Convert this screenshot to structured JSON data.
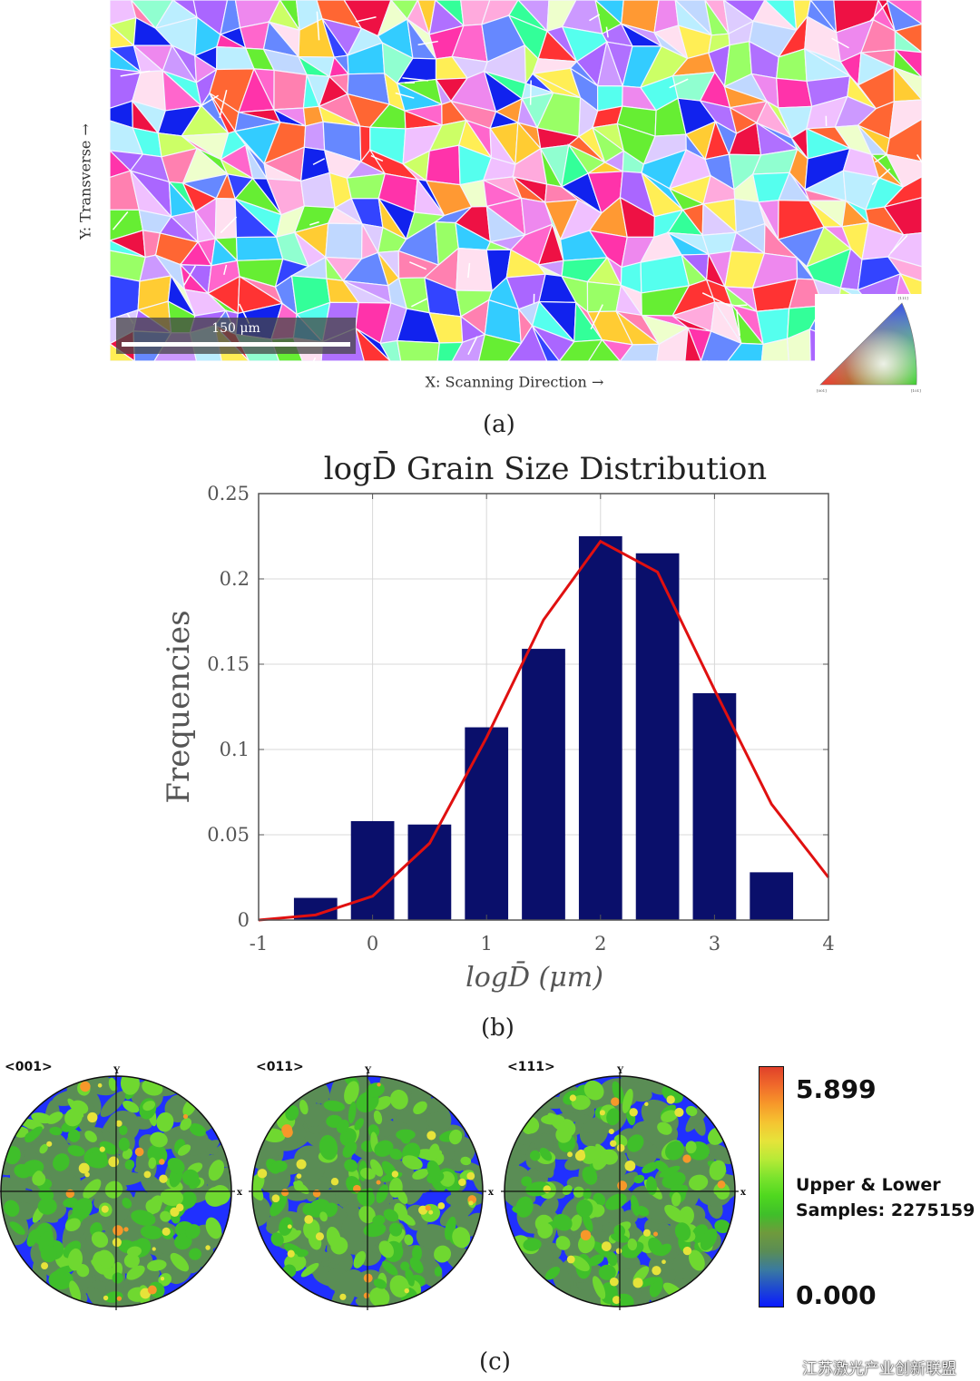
{
  "panel_a": {
    "y_axis_label": "Y: Transverse →",
    "x_axis_label": "X: Scanning Direction →",
    "scale_bar_label": "150 μm",
    "ipf_corner_labels": [
      "001",
      "101",
      "111"
    ],
    "caption": "(a)"
  },
  "panel_b": {
    "caption": "(b)"
  },
  "chart_data": {
    "type": "bar",
    "title": "logD̄ Grain Size Distribution",
    "xlabel": "logD̄ (μm)",
    "ylabel": "Frequencies",
    "xlim": [
      -1,
      4
    ],
    "ylim": [
      0,
      0.25
    ],
    "x_ticks": [
      "-1",
      "0",
      "1",
      "2",
      "3",
      "4"
    ],
    "y_ticks": [
      "0",
      "0.05",
      "0.1",
      "0.15",
      "0.2",
      "0.25"
    ],
    "grid": true,
    "bar_color": "#0a0f6b",
    "fit_color": "#e01010",
    "bar_centers": [
      -0.5,
      0,
      0.5,
      1,
      1.5,
      2,
      2.5,
      3,
      3.5
    ],
    "bar_values": [
      0.013,
      0.058,
      0.056,
      0.113,
      0.159,
      0.225,
      0.215,
      0.133,
      0.028
    ],
    "fit_curve": {
      "x": [
        -1,
        -0.5,
        0,
        0.5,
        1,
        1.5,
        2,
        2.5,
        3,
        3.5,
        4
      ],
      "y": [
        0.0,
        0.003,
        0.014,
        0.045,
        0.107,
        0.176,
        0.222,
        0.204,
        0.135,
        0.068,
        0.025
      ]
    }
  },
  "panel_c": {
    "pole_figures": [
      {
        "label": "<001>",
        "x_axis": "x",
        "y_axis": "Y"
      },
      {
        "label": "<011>",
        "x_axis": "x",
        "y_axis": "Y"
      },
      {
        "label": "<111>",
        "x_axis": "x",
        "y_axis": "Y"
      }
    ],
    "colorbar": {
      "max_label": "5.899",
      "min_label": "0.000",
      "info_line1": "Upper & Lower",
      "info_line2": "Samples: 2275159",
      "colors": [
        "#0a1aff",
        "#1f4ad0",
        "#3a7aa0",
        "#5a8d55",
        "#6f9a3c",
        "#3fbf2a",
        "#4fd81f",
        "#7be32d",
        "#b7ea37",
        "#e6e33a",
        "#f5c431",
        "#f7982a",
        "#f06a2b",
        "#e0402a"
      ]
    },
    "caption": "(c)",
    "watermark": "江苏激光产业创新联盟"
  }
}
